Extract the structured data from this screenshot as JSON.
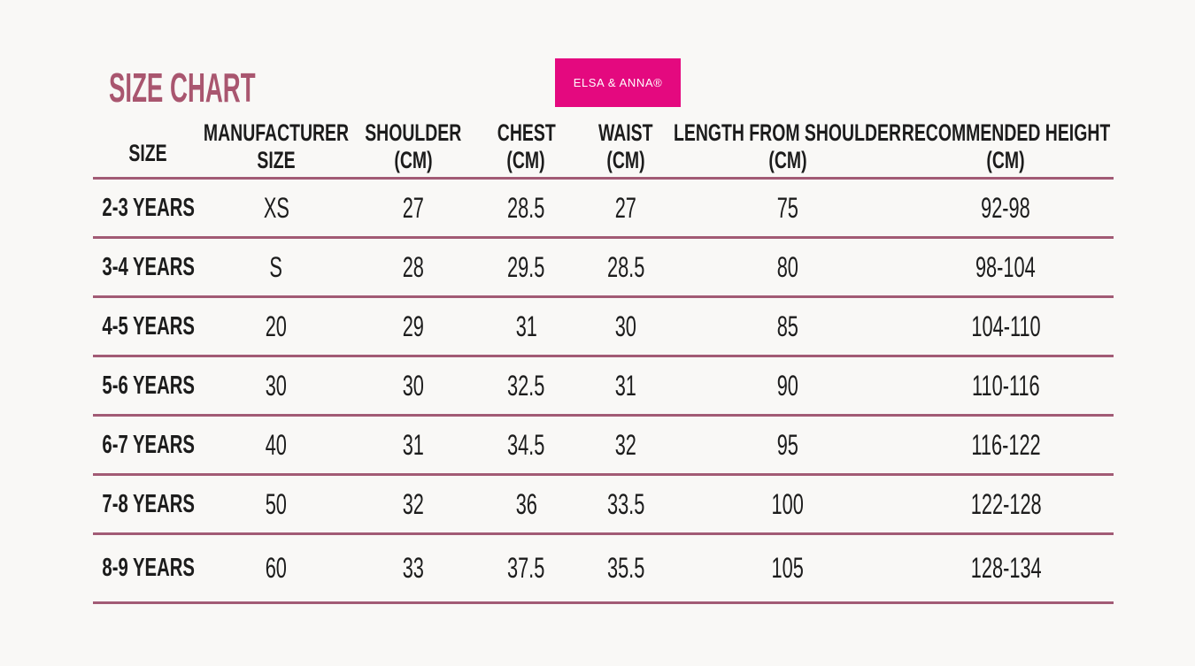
{
  "title": "SIZE CHART",
  "brand_badge": {
    "label": "ELSA & ANNA®",
    "background": "#e4097f",
    "text_color": "#ffffff"
  },
  "colors": {
    "page_background": "#f9f8f6",
    "title_text": "#a9566f",
    "divider_lines": "#a25b75",
    "table_text": "#1c1c1c"
  },
  "chart_data": {
    "type": "table",
    "title": "SIZE CHART",
    "columns": [
      [
        "SIZE",
        ""
      ],
      [
        "MANUFACTURER",
        "SIZE"
      ],
      [
        "SHOULDER",
        "(CM)"
      ],
      [
        "CHEST",
        "(CM)"
      ],
      [
        "WAIST",
        "(CM)"
      ],
      [
        "LENGTH FROM SHOULDER",
        "(CM)"
      ],
      [
        "RECOMMENDED HEIGHT",
        "(CM)"
      ]
    ],
    "rows": [
      [
        "2-3 YEARS",
        "XS",
        "27",
        "28.5",
        "27",
        "75",
        "92-98"
      ],
      [
        "3-4 YEARS",
        "S",
        "28",
        "29.5",
        "28.5",
        "80",
        "98-104"
      ],
      [
        "4-5 YEARS",
        "20",
        "29",
        "31",
        "30",
        "85",
        "104-110"
      ],
      [
        "5-6 YEARS",
        "30",
        "30",
        "32.5",
        "31",
        "90",
        "110-116"
      ],
      [
        "6-7 YEARS",
        "40",
        "31",
        "34.5",
        "32",
        "95",
        "116-122"
      ],
      [
        "7-8 YEARS",
        "50",
        "32",
        "36",
        "33.5",
        "100",
        "122-128"
      ],
      [
        "8-9 YEARS",
        "60",
        "33",
        "37.5",
        "35.5",
        "105",
        "128-134"
      ]
    ]
  }
}
